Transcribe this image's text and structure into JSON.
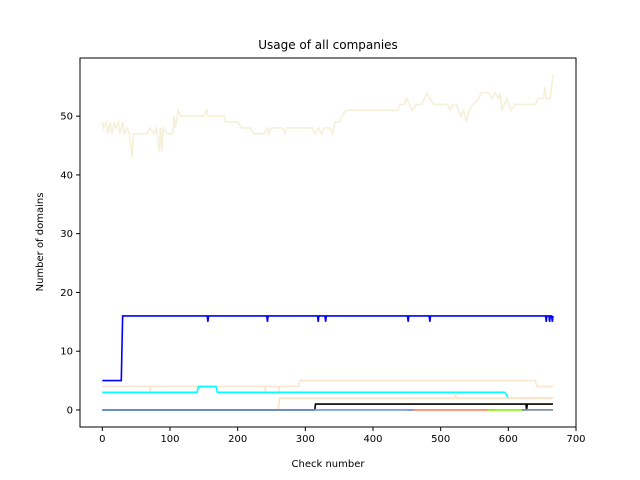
{
  "chart_data": {
    "type": "line",
    "title": "Usage of all companies",
    "xlabel": "Check number",
    "ylabel": "Number of domains",
    "xlim": [
      -33,
      700
    ],
    "ylim": [
      -2.9,
      59.9
    ],
    "xticks": [
      0,
      100,
      200,
      300,
      400,
      500,
      600,
      700
    ],
    "yticks": [
      0,
      10,
      20,
      30,
      40,
      50
    ],
    "grid": false,
    "legend": "none",
    "series": [
      {
        "color": "#f5f0d8",
        "points": [
          [
            0,
            49
          ],
          [
            2,
            48
          ],
          [
            6,
            49
          ],
          [
            8,
            47
          ],
          [
            12,
            49
          ],
          [
            14,
            47
          ],
          [
            18,
            49
          ],
          [
            20,
            48
          ],
          [
            24,
            49
          ],
          [
            26,
            47
          ],
          [
            30,
            49
          ],
          [
            32,
            47
          ],
          [
            36,
            48
          ],
          [
            40,
            47
          ],
          [
            44,
            43
          ],
          [
            46,
            47
          ],
          [
            60,
            47
          ],
          [
            66,
            47
          ],
          [
            70,
            48
          ],
          [
            76,
            47
          ],
          [
            80,
            48
          ],
          [
            84,
            44
          ],
          [
            86,
            48
          ],
          [
            88,
            44
          ],
          [
            90,
            48
          ],
          [
            96,
            47
          ],
          [
            104,
            47
          ],
          [
            106,
            50
          ],
          [
            108,
            48
          ],
          [
            112,
            51
          ],
          [
            116,
            50
          ],
          [
            150,
            50
          ],
          [
            154,
            51
          ],
          [
            156,
            50
          ],
          [
            180,
            50
          ],
          [
            182,
            49
          ],
          [
            200,
            49
          ],
          [
            206,
            48
          ],
          [
            218,
            48
          ],
          [
            224,
            47
          ],
          [
            238,
            47
          ],
          [
            244,
            48
          ],
          [
            246,
            47
          ],
          [
            250,
            48
          ],
          [
            266,
            48
          ],
          [
            270,
            47
          ],
          [
            272,
            48
          ],
          [
            310,
            48
          ],
          [
            314,
            47
          ],
          [
            320,
            48
          ],
          [
            324,
            47
          ],
          [
            328,
            48
          ],
          [
            336,
            48
          ],
          [
            340,
            47
          ],
          [
            344,
            49
          ],
          [
            350,
            49
          ],
          [
            354,
            50
          ],
          [
            360,
            51
          ],
          [
            436,
            51
          ],
          [
            440,
            52
          ],
          [
            446,
            52
          ],
          [
            450,
            53
          ],
          [
            458,
            51
          ],
          [
            464,
            52
          ],
          [
            472,
            52
          ],
          [
            476,
            53
          ],
          [
            480,
            54
          ],
          [
            484,
            53
          ],
          [
            490,
            52
          ],
          [
            510,
            52
          ],
          [
            514,
            51
          ],
          [
            518,
            52
          ],
          [
            524,
            52
          ],
          [
            526,
            51
          ],
          [
            530,
            50
          ],
          [
            534,
            51
          ],
          [
            538,
            49
          ],
          [
            542,
            51
          ],
          [
            548,
            52
          ],
          [
            556,
            53
          ],
          [
            560,
            54
          ],
          [
            570,
            54
          ],
          [
            576,
            53
          ],
          [
            580,
            54
          ],
          [
            586,
            53
          ],
          [
            588,
            54
          ],
          [
            590,
            51
          ],
          [
            594,
            52
          ],
          [
            598,
            53
          ],
          [
            604,
            51
          ],
          [
            610,
            52
          ],
          [
            640,
            52
          ],
          [
            644,
            53
          ],
          [
            652,
            53
          ],
          [
            654,
            55
          ],
          [
            656,
            53
          ],
          [
            662,
            53
          ],
          [
            666,
            57
          ]
        ]
      },
      {
        "color": "#0000ff",
        "points": [
          [
            0,
            5
          ],
          [
            28,
            5
          ],
          [
            30,
            16
          ],
          [
            155,
            16
          ],
          [
            156,
            15
          ],
          [
            157,
            16
          ],
          [
            243,
            16
          ],
          [
            244,
            15
          ],
          [
            245,
            16
          ],
          [
            318,
            16
          ],
          [
            319,
            15
          ],
          [
            320,
            16
          ],
          [
            329,
            16
          ],
          [
            330,
            15
          ],
          [
            331,
            16
          ],
          [
            451,
            16
          ],
          [
            452,
            15
          ],
          [
            453,
            16
          ],
          [
            483,
            16
          ],
          [
            484,
            15
          ],
          [
            485,
            16
          ],
          [
            655,
            16
          ],
          [
            656,
            15
          ],
          [
            657,
            16
          ],
          [
            660,
            16
          ],
          [
            661,
            15
          ],
          [
            662,
            16
          ],
          [
            664,
            16
          ],
          [
            665,
            15
          ],
          [
            666,
            16
          ]
        ]
      },
      {
        "color": "#fde6d0",
        "points": [
          [
            0,
            4
          ],
          [
            70,
            4
          ],
          [
            71,
            3
          ],
          [
            72,
            4
          ],
          [
            130,
            4
          ],
          [
            240,
            4
          ],
          [
            241,
            3
          ],
          [
            242,
            4
          ],
          [
            260,
            4
          ],
          [
            261,
            3
          ],
          [
            262,
            4
          ],
          [
            290,
            4
          ],
          [
            292,
            5
          ],
          [
            345,
            5
          ],
          [
            640,
            5
          ],
          [
            642,
            4
          ],
          [
            666,
            4
          ]
        ]
      },
      {
        "color": "#00ffff",
        "points": [
          [
            0,
            3
          ],
          [
            140,
            3
          ],
          [
            142,
            4
          ],
          [
            168,
            4
          ],
          [
            170,
            3
          ],
          [
            595,
            3
          ],
          [
            600,
            2
          ],
          [
            666,
            2
          ]
        ]
      },
      {
        "color": "#fde2c8",
        "points": [
          [
            0,
            0
          ],
          [
            260,
            0
          ],
          [
            262,
            2
          ],
          [
            520,
            2
          ],
          [
            522,
            2.5
          ],
          [
            524,
            2
          ],
          [
            666,
            2
          ]
        ]
      },
      {
        "color": "#000000",
        "points": [
          [
            0,
            0
          ],
          [
            314,
            0
          ],
          [
            315,
            1
          ],
          [
            626,
            1
          ],
          [
            627,
            0
          ],
          [
            628,
            1
          ],
          [
            666,
            1
          ]
        ]
      },
      {
        "color": "#ff7f50",
        "points": [
          [
            450,
            0
          ],
          [
            580,
            0
          ]
        ]
      },
      {
        "color": "#7cfc00",
        "points": [
          [
            570,
            0
          ],
          [
            628,
            0
          ]
        ]
      },
      {
        "color": "#6495ed",
        "points": [
          [
            0,
            0
          ],
          [
            460,
            0
          ]
        ]
      },
      {
        "color": "#778899",
        "points": [
          [
            620,
            0
          ],
          [
            666,
            0
          ]
        ]
      }
    ]
  }
}
